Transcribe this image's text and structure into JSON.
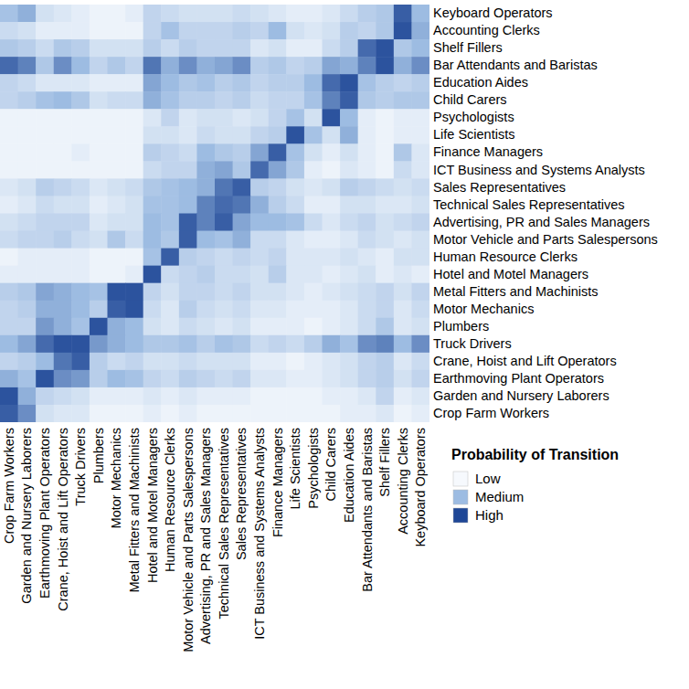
{
  "chart_data": {
    "type": "heatmap",
    "x": [
      "Crop Farm Workers",
      "Garden and Nursery Laborers",
      "Earthmoving Plant Operators",
      "Crane, Hoist and Lift Operators",
      "Truck Drivers",
      "Plumbers",
      "Motor Mechanics",
      "Metal Fitters and Machinists",
      "Hotel and Motel Managers",
      "Human Resource Clerks",
      "Motor Vehicle and Parts Salespersons",
      "Advertising, PR and Sales Managers",
      "Technical Sales Representatives",
      "Sales Representatives",
      "ICT Business and Systems Analysts",
      "Finance Managers",
      "Life Scientists",
      "Psychologists",
      "Child Carers",
      "Education Aides",
      "Bar Attendants and Baristas",
      "Shelf Fillers",
      "Accounting Clerks",
      "Keyboard Operators"
    ],
    "y": [
      "Keyboard Operators",
      "Accounting Clerks",
      "Shelf Fillers",
      "Bar Attendants and Baristas",
      "Education Aides",
      "Child Carers",
      "Psychologists",
      "Life Scientists",
      "Finance Managers",
      "ICT Business and Systems Analysts",
      "Sales Representatives",
      "Technical Sales Representatives",
      "Advertising, PR and Sales Managers",
      "Motor Vehicle and Parts Salespersons",
      "Human Resource Clerks",
      "Hotel and Motel Managers",
      "Metal Fitters and Machinists",
      "Motor Mechanics",
      "Plumbers",
      "Truck Drivers",
      "Crane, Hoist and Lift Operators",
      "Earthmoving Plant Operators",
      "Garden and Nursery Laborers",
      "Crop Farm Workers"
    ],
    "values": [
      [
        0.45,
        0.55,
        0.2,
        0.15,
        0.1,
        0.05,
        0.05,
        0.1,
        0.3,
        0.25,
        0.2,
        0.2,
        0.2,
        0.25,
        0.2,
        0.15,
        0.1,
        0.1,
        0.15,
        0.25,
        0.35,
        0.4,
        0.9,
        0.5
      ],
      [
        0.25,
        0.2,
        0.1,
        0.1,
        0.1,
        0.05,
        0.05,
        0.05,
        0.3,
        0.45,
        0.3,
        0.3,
        0.3,
        0.35,
        0.3,
        0.5,
        0.2,
        0.15,
        0.2,
        0.35,
        0.3,
        0.4,
        0.95,
        0.55
      ],
      [
        0.4,
        0.35,
        0.25,
        0.4,
        0.35,
        0.2,
        0.2,
        0.2,
        0.35,
        0.25,
        0.35,
        0.3,
        0.3,
        0.3,
        0.15,
        0.2,
        0.1,
        0.1,
        0.25,
        0.35,
        0.85,
        0.95,
        0.4,
        0.5
      ],
      [
        0.85,
        0.75,
        0.4,
        0.7,
        0.5,
        0.3,
        0.4,
        0.3,
        0.8,
        0.55,
        0.7,
        0.55,
        0.6,
        0.7,
        0.35,
        0.4,
        0.3,
        0.35,
        0.6,
        0.55,
        0.75,
        0.95,
        0.55,
        0.7
      ],
      [
        0.3,
        0.25,
        0.15,
        0.15,
        0.15,
        0.1,
        0.1,
        0.1,
        0.6,
        0.5,
        0.4,
        0.45,
        0.35,
        0.4,
        0.3,
        0.35,
        0.35,
        0.5,
        0.85,
        0.95,
        0.45,
        0.35,
        0.3,
        0.35
      ],
      [
        0.3,
        0.35,
        0.45,
        0.5,
        0.4,
        0.2,
        0.25,
        0.25,
        0.55,
        0.45,
        0.35,
        0.35,
        0.3,
        0.35,
        0.25,
        0.3,
        0.3,
        0.45,
        0.75,
        0.9,
        0.4,
        0.35,
        0.4,
        0.4
      ],
      [
        0.05,
        0.05,
        0.05,
        0.05,
        0.05,
        0.05,
        0.05,
        0.05,
        0.15,
        0.3,
        0.15,
        0.2,
        0.2,
        0.15,
        0.2,
        0.3,
        0.45,
        0.2,
        0.95,
        0.5,
        0.1,
        0.05,
        0.1,
        0.1
      ],
      [
        0.05,
        0.05,
        0.05,
        0.05,
        0.05,
        0.05,
        0.05,
        0.05,
        0.2,
        0.2,
        0.15,
        0.25,
        0.2,
        0.2,
        0.3,
        0.35,
        0.95,
        0.45,
        0.2,
        0.55,
        0.1,
        0.05,
        0.1,
        0.1
      ],
      [
        0.05,
        0.05,
        0.05,
        0.05,
        0.1,
        0.05,
        0.05,
        0.05,
        0.35,
        0.3,
        0.25,
        0.5,
        0.4,
        0.35,
        0.6,
        0.9,
        0.45,
        0.2,
        0.1,
        0.2,
        0.1,
        0.05,
        0.4,
        0.15
      ],
      [
        0.05,
        0.05,
        0.05,
        0.05,
        0.05,
        0.05,
        0.05,
        0.05,
        0.25,
        0.3,
        0.3,
        0.55,
        0.6,
        0.4,
        0.85,
        0.6,
        0.4,
        0.1,
        0.05,
        0.15,
        0.1,
        0.05,
        0.25,
        0.15
      ],
      [
        0.15,
        0.2,
        0.35,
        0.3,
        0.25,
        0.15,
        0.2,
        0.25,
        0.4,
        0.45,
        0.5,
        0.55,
        0.8,
        0.9,
        0.35,
        0.3,
        0.2,
        0.15,
        0.2,
        0.35,
        0.3,
        0.25,
        0.2,
        0.25
      ],
      [
        0.1,
        0.15,
        0.25,
        0.2,
        0.2,
        0.1,
        0.15,
        0.2,
        0.45,
        0.45,
        0.5,
        0.75,
        0.85,
        0.8,
        0.55,
        0.35,
        0.25,
        0.1,
        0.1,
        0.2,
        0.2,
        0.15,
        0.15,
        0.2
      ],
      [
        0.2,
        0.25,
        0.3,
        0.3,
        0.3,
        0.15,
        0.2,
        0.2,
        0.5,
        0.45,
        0.9,
        0.75,
        0.9,
        0.6,
        0.5,
        0.5,
        0.45,
        0.25,
        0.15,
        0.25,
        0.3,
        0.2,
        0.25,
        0.3
      ],
      [
        0.25,
        0.3,
        0.3,
        0.35,
        0.25,
        0.2,
        0.4,
        0.25,
        0.5,
        0.4,
        0.9,
        0.5,
        0.45,
        0.55,
        0.25,
        0.25,
        0.15,
        0.1,
        0.1,
        0.15,
        0.25,
        0.2,
        0.15,
        0.2
      ],
      [
        0.05,
        0.1,
        0.1,
        0.1,
        0.1,
        0.05,
        0.05,
        0.05,
        0.45,
        0.9,
        0.35,
        0.3,
        0.25,
        0.3,
        0.25,
        0.3,
        0.15,
        0.15,
        0.15,
        0.2,
        0.15,
        0.1,
        0.2,
        0.2
      ],
      [
        0.1,
        0.1,
        0.1,
        0.1,
        0.1,
        0.05,
        0.05,
        0.1,
        0.95,
        0.25,
        0.3,
        0.35,
        0.25,
        0.25,
        0.2,
        0.35,
        0.15,
        0.15,
        0.1,
        0.15,
        0.2,
        0.1,
        0.15,
        0.1
      ],
      [
        0.35,
        0.4,
        0.6,
        0.55,
        0.5,
        0.45,
        0.95,
        0.95,
        0.3,
        0.2,
        0.3,
        0.3,
        0.25,
        0.3,
        0.2,
        0.2,
        0.15,
        0.1,
        0.15,
        0.2,
        0.25,
        0.3,
        0.2,
        0.3
      ],
      [
        0.3,
        0.35,
        0.55,
        0.55,
        0.5,
        0.35,
        0.9,
        0.95,
        0.25,
        0.15,
        0.35,
        0.25,
        0.2,
        0.25,
        0.15,
        0.15,
        0.1,
        0.1,
        0.1,
        0.15,
        0.25,
        0.3,
        0.15,
        0.25
      ],
      [
        0.3,
        0.3,
        0.65,
        0.55,
        0.45,
        0.95,
        0.55,
        0.5,
        0.2,
        0.15,
        0.25,
        0.2,
        0.15,
        0.2,
        0.1,
        0.1,
        0.1,
        0.05,
        0.1,
        0.15,
        0.25,
        0.4,
        0.15,
        0.2
      ],
      [
        0.5,
        0.6,
        0.85,
        0.95,
        0.95,
        0.65,
        0.55,
        0.5,
        0.4,
        0.4,
        0.45,
        0.35,
        0.45,
        0.4,
        0.25,
        0.3,
        0.25,
        0.35,
        0.55,
        0.45,
        0.7,
        0.75,
        0.5,
        0.7
      ],
      [
        0.3,
        0.35,
        0.5,
        0.8,
        0.9,
        0.35,
        0.25,
        0.3,
        0.2,
        0.2,
        0.25,
        0.2,
        0.2,
        0.2,
        0.1,
        0.1,
        0.05,
        0.1,
        0.15,
        0.2,
        0.3,
        0.35,
        0.15,
        0.25
      ],
      [
        0.55,
        0.45,
        0.95,
        0.7,
        0.65,
        0.35,
        0.5,
        0.45,
        0.3,
        0.25,
        0.35,
        0.3,
        0.25,
        0.3,
        0.15,
        0.15,
        0.1,
        0.1,
        0.15,
        0.2,
        0.3,
        0.35,
        0.2,
        0.3
      ],
      [
        0.95,
        0.55,
        0.3,
        0.25,
        0.2,
        0.1,
        0.1,
        0.1,
        0.15,
        0.1,
        0.15,
        0.1,
        0.1,
        0.1,
        0.05,
        0.05,
        0.05,
        0.05,
        0.1,
        0.1,
        0.15,
        0.3,
        0.1,
        0.15
      ],
      [
        0.9,
        0.7,
        0.2,
        0.15,
        0.15,
        0.05,
        0.05,
        0.05,
        0.1,
        0.05,
        0.1,
        0.05,
        0.05,
        0.05,
        0.05,
        0.05,
        0.05,
        0.05,
        0.05,
        0.1,
        0.1,
        0.15,
        0.05,
        0.1
      ]
    ],
    "legend_title": "Probability of Transition",
    "color_range": [
      0,
      1
    ],
    "color_ticks": [
      {
        "value": 0,
        "label": "Low"
      },
      {
        "value": 0.5,
        "label": "Medium"
      },
      {
        "value": 1,
        "label": "High"
      }
    ]
  }
}
